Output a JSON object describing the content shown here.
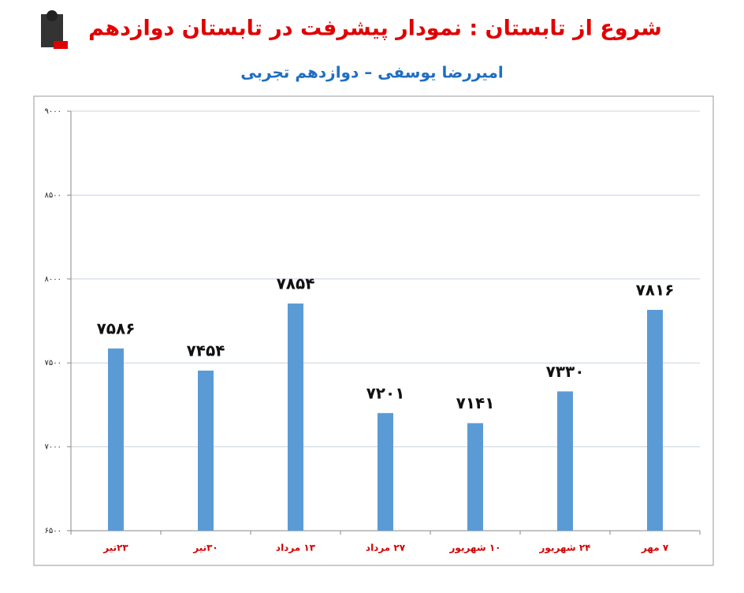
{
  "chart_data": {
    "type": "bar",
    "title": "شروع از تابستان : نمودار پیشرفت در تابستان دوازدهم",
    "subtitle": "امیررضا یوسفی – دوازدهم تجربی",
    "categories": [
      "۲۳تیر",
      "۳۰تیر",
      "۱۳ مرداد",
      "۲۷ مرداد",
      "۱۰ شهریور",
      "۲۴ شهریور",
      "۷ مهر"
    ],
    "values": [
      7586,
      7454,
      7854,
      7201,
      7141,
      7330,
      7816
    ],
    "value_labels": [
      "۷۵۸۶",
      "۷۴۵۴",
      "۷۸۵۴",
      "۷۲۰۱",
      "۷۱۴۱",
      "۷۳۳۰",
      "۷۸۱۶"
    ],
    "color": "#5b9bd5",
    "ylim": [
      6500,
      9000
    ],
    "yticks": [
      {
        "value": 6500,
        "label": "۶۵۰۰"
      },
      {
        "value": 7000,
        "label": "۷۰۰۰"
      },
      {
        "value": 7500,
        "label": "۷۵۰۰"
      },
      {
        "value": 8000,
        "label": "۸۰۰۰"
      },
      {
        "value": 8500,
        "label": "۸۵۰۰"
      },
      {
        "value": 9000,
        "label": "۹۰۰۰"
      }
    ],
    "grid": true
  }
}
